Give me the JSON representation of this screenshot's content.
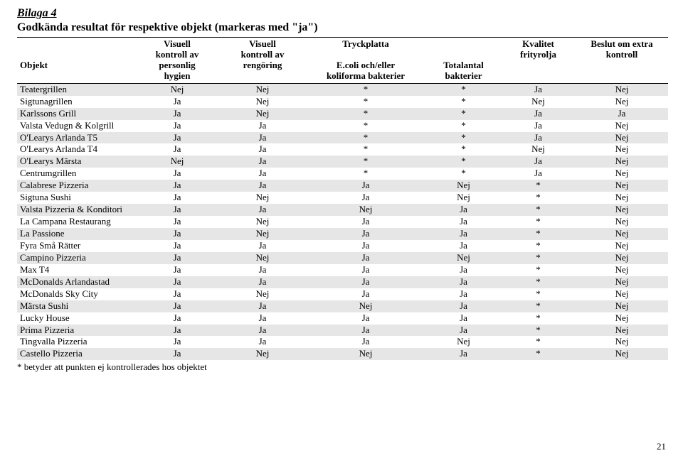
{
  "page": {
    "title": "Bilaga 4",
    "subtitle": "Godkända resultat för respektive objekt (markeras med \"ja\")",
    "footnote": "* betyder att punkten ej kontrollerades hos objektet",
    "pageNumber": "21"
  },
  "colors": {
    "shade": "#e6e6e6",
    "text": "#000000",
    "bg": "#ffffff",
    "border": "#000000"
  },
  "header": {
    "objekt": "Objekt",
    "visuell_personlig_l1": "Visuell",
    "visuell_personlig_l2": "kontroll av",
    "visuell_personlig_l3": "personlig",
    "visuell_personlig_l4": "hygien",
    "visuell_rengoring_l1": "Visuell",
    "visuell_rengoring_l2": "kontroll av",
    "visuell_rengoring_l3": "rengöring",
    "tryckplatta_top": "Tryckplatta",
    "tryckplatta_sub_l1": "E.coli och/eller",
    "tryckplatta_sub_l2": "koliforma bakterier",
    "totalantal_l1": "Totalantal",
    "totalantal_l2": "bakterier",
    "kvalitet_l1": "Kvalitet",
    "kvalitet_l2": "frityrolja",
    "beslut_l1": "Beslut om extra",
    "beslut_l2": "kontroll"
  },
  "rows": [
    {
      "objekt": "Teatergrillen",
      "c2": "Nej",
      "c3": "Nej",
      "c4": "*",
      "c5": "*",
      "c6": "Ja",
      "c7": "Nej"
    },
    {
      "objekt": "Sigtunagrillen",
      "c2": "Ja",
      "c3": "Nej",
      "c4": "*",
      "c5": "*",
      "c6": "Nej",
      "c7": "Nej"
    },
    {
      "objekt": "Karlssons Grill",
      "c2": "Ja",
      "c3": "Nej",
      "c4": "*",
      "c5": "*",
      "c6": "Ja",
      "c7": "Ja"
    },
    {
      "objekt": "Valsta Vedugn & Kolgrill",
      "c2": "Ja",
      "c3": "Ja",
      "c4": "*",
      "c5": "*",
      "c6": "Ja",
      "c7": "Nej"
    },
    {
      "objekt": "O'Learys Arlanda T5",
      "c2": "Ja",
      "c3": "Ja",
      "c4": "*",
      "c5": "*",
      "c6": "Ja",
      "c7": "Nej"
    },
    {
      "objekt": "O'Learys Arlanda T4",
      "c2": "Ja",
      "c3": "Ja",
      "c4": "*",
      "c5": "*",
      "c6": "Nej",
      "c7": "Nej"
    },
    {
      "objekt": "O'Learys Märsta",
      "c2": "Nej",
      "c3": "Ja",
      "c4": "*",
      "c5": "*",
      "c6": "Ja",
      "c7": "Nej"
    },
    {
      "objekt": "Centrumgrillen",
      "c2": "Ja",
      "c3": "Ja",
      "c4": "*",
      "c5": "*",
      "c6": "Ja",
      "c7": "Nej"
    },
    {
      "objekt": "Calabrese Pizzeria",
      "c2": "Ja",
      "c3": "Ja",
      "c4": "Ja",
      "c5": "Nej",
      "c6": "*",
      "c7": "Nej"
    },
    {
      "objekt": "Sigtuna Sushi",
      "c2": "Ja",
      "c3": "Nej",
      "c4": "Ja",
      "c5": "Nej",
      "c6": "*",
      "c7": "Nej"
    },
    {
      "objekt": "Valsta Pizzeria & Konditori",
      "c2": "Ja",
      "c3": "Ja",
      "c4": "Nej",
      "c5": "Ja",
      "c6": "*",
      "c7": "Nej"
    },
    {
      "objekt": "La Campana Restaurang",
      "c2": "Ja",
      "c3": "Nej",
      "c4": "Ja",
      "c5": "Ja",
      "c6": "*",
      "c7": "Nej"
    },
    {
      "objekt": "La Passione",
      "c2": "Ja",
      "c3": "Nej",
      "c4": "Ja",
      "c5": "Ja",
      "c6": "*",
      "c7": "Nej"
    },
    {
      "objekt": "Fyra Små Rätter",
      "c2": "Ja",
      "c3": "Ja",
      "c4": "Ja",
      "c5": "Ja",
      "c6": "*",
      "c7": "Nej"
    },
    {
      "objekt": "Campino Pizzeria",
      "c2": "Ja",
      "c3": "Nej",
      "c4": "Ja",
      "c5": "Nej",
      "c6": "*",
      "c7": "Nej"
    },
    {
      "objekt": "Max T4",
      "c2": "Ja",
      "c3": "Ja",
      "c4": "Ja",
      "c5": "Ja",
      "c6": "*",
      "c7": "Nej"
    },
    {
      "objekt": "McDonalds Arlandastad",
      "c2": "Ja",
      "c3": "Ja",
      "c4": "Ja",
      "c5": "Ja",
      "c6": "*",
      "c7": "Nej"
    },
    {
      "objekt": "McDonalds Sky City",
      "c2": "Ja",
      "c3": "Nej",
      "c4": "Ja",
      "c5": "Ja",
      "c6": "*",
      "c7": "Nej"
    },
    {
      "objekt": "Märsta Sushi",
      "c2": "Ja",
      "c3": "Ja",
      "c4": "Nej",
      "c5": "Ja",
      "c6": "*",
      "c7": "Nej"
    },
    {
      "objekt": "Lucky House",
      "c2": "Ja",
      "c3": "Ja",
      "c4": "Ja",
      "c5": "Ja",
      "c6": "*",
      "c7": "Nej"
    },
    {
      "objekt": "Prima Pizzeria",
      "c2": "Ja",
      "c3": "Ja",
      "c4": "Ja",
      "c5": "Ja",
      "c6": "*",
      "c7": "Nej"
    },
    {
      "objekt": "Tingvalla Pizzeria",
      "c2": "Ja",
      "c3": "Ja",
      "c4": "Ja",
      "c5": "Nej",
      "c6": "*",
      "c7": "Nej"
    },
    {
      "objekt": "Castello Pizzeria",
      "c2": "Ja",
      "c3": "Nej",
      "c4": "Nej",
      "c5": "Ja",
      "c6": "*",
      "c7": "Nej"
    }
  ]
}
